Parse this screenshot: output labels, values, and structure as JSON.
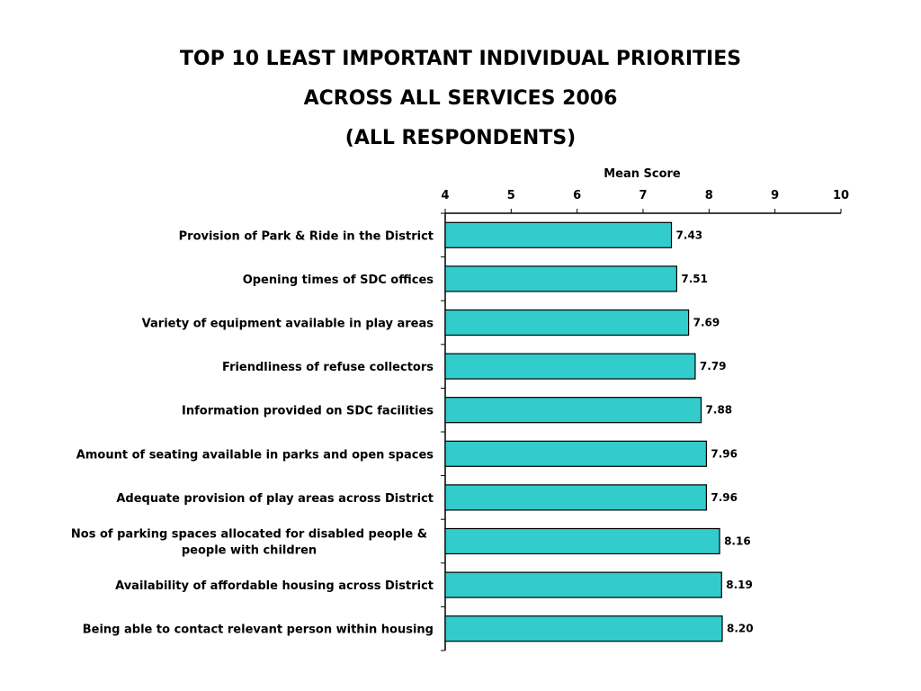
{
  "title_lines": [
    "TOP 10 LEAST IMPORTANT INDIVIDUAL PRIORITIES",
    "ACROSS ALL SERVICES 2006",
    "(ALL RESPONDENTS)"
  ],
  "colors": {
    "bar_fill": "#33CCCC",
    "bar_stroke": "#000000"
  },
  "chart_data": {
    "type": "bar",
    "orientation": "horizontal",
    "xlabel": "Mean Score",
    "xlim": [
      4,
      10
    ],
    "xticks": [
      4,
      5,
      6,
      7,
      8,
      9,
      10
    ],
    "axis_position": "top",
    "grid": false,
    "categories": [
      [
        "Provision of Park & Ride in the District"
      ],
      [
        "Opening times of SDC offices"
      ],
      [
        "Variety of equipment available in play areas"
      ],
      [
        "Friendliness of refuse collectors"
      ],
      [
        "Information provided on SDC facilities"
      ],
      [
        "Amount of seating available in parks and open spaces"
      ],
      [
        "Adequate provision of play areas across District"
      ],
      [
        "Nos of parking spaces allocated for disabled people &",
        "people with children"
      ],
      [
        "Availability of affordable housing across District"
      ],
      [
        "Being able to contact relevant person within housing"
      ]
    ],
    "values": [
      7.43,
      7.51,
      7.69,
      7.79,
      7.88,
      7.96,
      7.96,
      8.16,
      8.19,
      8.2
    ],
    "value_labels": [
      "7.43",
      "7.51",
      "7.69",
      "7.79",
      "7.88",
      "7.96",
      "7.96",
      "8.16",
      "8.19",
      "8.20"
    ]
  }
}
